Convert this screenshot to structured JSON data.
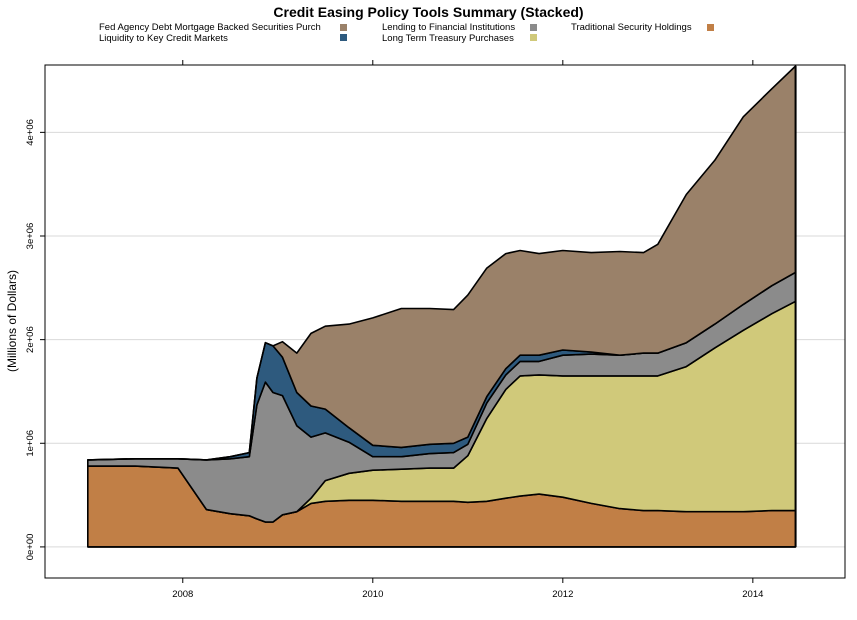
{
  "chart_data": {
    "type": "area",
    "stacked": true,
    "title": "Credit Easing Policy Tools Summary (Stacked)",
    "xlabel": "",
    "ylabel": "(Millions of Dollars)",
    "xlim": [
      2006.55,
      2014.97
    ],
    "ylim": [
      -300000,
      4650000
    ],
    "x_ticks": [
      2008,
      2010,
      2012,
      2014
    ],
    "y_ticks": [
      0,
      1000000,
      2000000,
      3000000,
      4000000
    ],
    "y_tick_labels": [
      "0e+00",
      "1e+06",
      "2e+06",
      "3e+06",
      "4e+06"
    ],
    "grid": "horizontal",
    "legend_position": "top",
    "x": [
      2007.0,
      2007.5,
      2007.95,
      2008.25,
      2008.5,
      2008.7,
      2008.78,
      2008.87,
      2008.95,
      2009.05,
      2009.2,
      2009.35,
      2009.5,
      2009.75,
      2010.0,
      2010.3,
      2010.6,
      2010.85,
      2011.0,
      2011.2,
      2011.4,
      2011.55,
      2011.75,
      2012.0,
      2012.3,
      2012.6,
      2012.85,
      2013.0,
      2013.3,
      2013.6,
      2013.9,
      2014.2,
      2014.45
    ],
    "series": [
      {
        "name": "Traditional Security Holdings",
        "color": "#C17F46",
        "values": [
          780000,
          780000,
          760000,
          360000,
          320000,
          300000,
          270000,
          240000,
          240000,
          310000,
          340000,
          420000,
          440000,
          450000,
          450000,
          440000,
          440000,
          440000,
          430000,
          440000,
          470000,
          490000,
          510000,
          480000,
          420000,
          370000,
          350000,
          350000,
          340000,
          340000,
          340000,
          350000,
          350000
        ]
      },
      {
        "name": "Long Term Treasury Purchases",
        "color": "#D0C97A",
        "values": [
          0,
          0,
          0,
          0,
          0,
          0,
          0,
          0,
          0,
          0,
          0,
          50000,
          200000,
          260000,
          290000,
          310000,
          320000,
          320000,
          450000,
          800000,
          1050000,
          1160000,
          1150000,
          1170000,
          1230000,
          1280000,
          1300000,
          1300000,
          1400000,
          1580000,
          1750000,
          1900000,
          2020000
        ]
      },
      {
        "name": "Lending to Financial Institutions",
        "color": "#8B8B8B",
        "values": [
          60000,
          70000,
          90000,
          480000,
          530000,
          570000,
          1100000,
          1350000,
          1250000,
          1150000,
          830000,
          590000,
          460000,
          300000,
          130000,
          120000,
          140000,
          150000,
          110000,
          150000,
          140000,
          140000,
          130000,
          200000,
          210000,
          200000,
          220000,
          220000,
          230000,
          230000,
          250000,
          270000,
          280000
        ]
      },
      {
        "name": "Liquidity to Key Credit Markets",
        "color": "#2E5A7E",
        "values": [
          0,
          0,
          0,
          0,
          20000,
          40000,
          260000,
          380000,
          450000,
          370000,
          320000,
          300000,
          230000,
          140000,
          110000,
          90000,
          90000,
          90000,
          70000,
          60000,
          60000,
          60000,
          60000,
          50000,
          20000,
          0,
          0,
          0,
          0,
          0,
          0,
          0,
          0
        ]
      },
      {
        "name": "Fed Agency Debt  Mortgage Backed Securities Purch",
        "color": "#9A8169",
        "values": [
          0,
          0,
          0,
          0,
          0,
          0,
          0,
          0,
          0,
          150000,
          380000,
          700000,
          800000,
          1000000,
          1230000,
          1340000,
          1310000,
          1290000,
          1370000,
          1240000,
          1110000,
          1010000,
          980000,
          960000,
          960000,
          1000000,
          970000,
          1050000,
          1430000,
          1580000,
          1810000,
          1900000,
          1990000
        ]
      }
    ],
    "legend": [
      {
        "label": "Fed Agency Debt  Mortgage Backed Securities Purch",
        "color": "#9A8169"
      },
      {
        "label": "Liquidity to Key Credit Markets",
        "color": "#2E5A7E"
      },
      {
        "label": "Lending to Financial Institutions",
        "color": "#8B8B8B"
      },
      {
        "label": "Long Term Treasury Purchases",
        "color": "#D0C97A"
      },
      {
        "label": "Traditional Security Holdings",
        "color": "#C17F46"
      }
    ]
  }
}
